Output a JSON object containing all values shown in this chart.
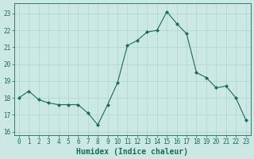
{
  "x": [
    0,
    1,
    2,
    3,
    4,
    5,
    6,
    7,
    8,
    9,
    10,
    11,
    12,
    13,
    14,
    15,
    16,
    17,
    18,
    19,
    20,
    21,
    22,
    23
  ],
  "y": [
    18.0,
    18.4,
    17.9,
    17.7,
    17.6,
    17.6,
    17.6,
    17.1,
    16.4,
    17.6,
    18.9,
    21.1,
    21.4,
    21.9,
    22.0,
    23.1,
    22.4,
    21.8,
    19.5,
    19.2,
    18.6,
    18.7,
    18.0,
    16.7
  ],
  "xlabel": "Humidex (Indice chaleur)",
  "ylim": [
    15.8,
    23.6
  ],
  "xlim": [
    -0.5,
    23.5
  ],
  "yticks": [
    16,
    17,
    18,
    19,
    20,
    21,
    22,
    23
  ],
  "xticks": [
    0,
    1,
    2,
    3,
    4,
    5,
    6,
    7,
    8,
    9,
    10,
    11,
    12,
    13,
    14,
    15,
    16,
    17,
    18,
    19,
    20,
    21,
    22,
    23
  ],
  "line_color": "#1a6b5a",
  "marker": "D",
  "marker_size": 2.0,
  "bg_color": "#cce8e4",
  "grid_color": "#b0d4ce",
  "tick_fontsize": 5.5,
  "xlabel_fontsize": 7.0,
  "axis_label_color": "#1a6b5a"
}
